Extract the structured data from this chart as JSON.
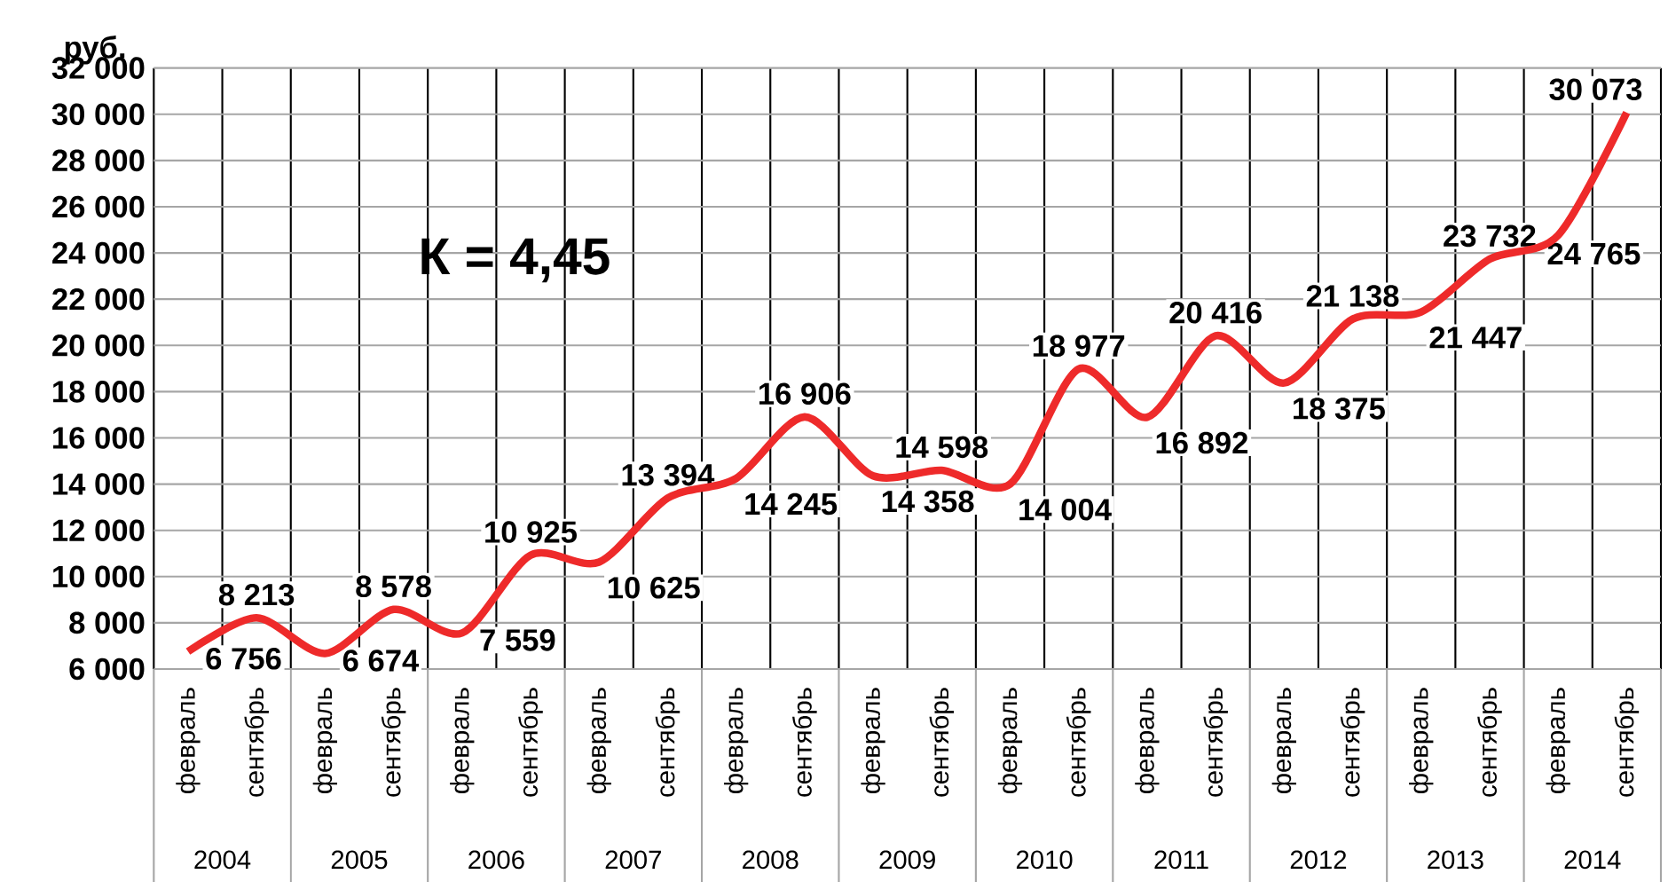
{
  "chart_data": {
    "type": "line",
    "ylabel": "руб.",
    "categories": [
      "февраль",
      "сентябрь",
      "февраль",
      "сентябрь",
      "февраль",
      "сентябрь",
      "февраль",
      "сентябрь",
      "февраль",
      "сентябрь",
      "февраль",
      "сентябрь",
      "февраль",
      "сентябрь",
      "февраль",
      "сентябрь",
      "февраль",
      "сентябрь",
      "февраль",
      "сентябрь",
      "февраль",
      "сентябрь"
    ],
    "series": [
      {
        "color": "#ee2a2a",
        "values": [
          6756,
          8213,
          6674,
          8578,
          7559,
          10925,
          10625,
          13394,
          14245,
          16906,
          14358,
          14598,
          14004,
          18977,
          16892,
          20416,
          18375,
          21138,
          21447,
          23732,
          24765,
          30073
        ],
        "value_labels": [
          "6 756",
          "8 213",
          "6 674",
          "8 578",
          "7 559",
          "10 925",
          "10 625",
          "13 394",
          "14 245",
          "16 906",
          "14 358",
          "14 598",
          "14 004",
          "18 977",
          "16 892",
          "20 416",
          "18 375",
          "21 138",
          "21 447",
          "23 732",
          "24 765",
          "30 073"
        ]
      }
    ],
    "ylim": [
      6000,
      32000
    ],
    "yticks": [
      {
        "value": 6000,
        "label": "6 000"
      },
      {
        "value": 8000,
        "label": "8 000"
      },
      {
        "value": 10000,
        "label": "10 000"
      },
      {
        "value": 12000,
        "label": "12 000"
      },
      {
        "value": 14000,
        "label": "14 000"
      },
      {
        "value": 16000,
        "label": "16 000"
      },
      {
        "value": 18000,
        "label": "18 000"
      },
      {
        "value": 20000,
        "label": "20 000"
      },
      {
        "value": 22000,
        "label": "22 000"
      },
      {
        "value": 24000,
        "label": "24 000"
      },
      {
        "value": 26000,
        "label": "26 000"
      },
      {
        "value": 28000,
        "label": "28 000"
      },
      {
        "value": 30000,
        "label": "30 000"
      },
      {
        "value": 32000,
        "label": "32 000"
      }
    ],
    "annotations": [
      {
        "text": "К = 4,45"
      },
      "2004",
      "2005",
      "2006",
      "2007",
      "2008",
      "2009",
      "2010",
      "2011",
      "2012",
      "2013",
      "2014"
    ],
    "grid": true,
    "marker": "none",
    "line_style": "solid"
  }
}
